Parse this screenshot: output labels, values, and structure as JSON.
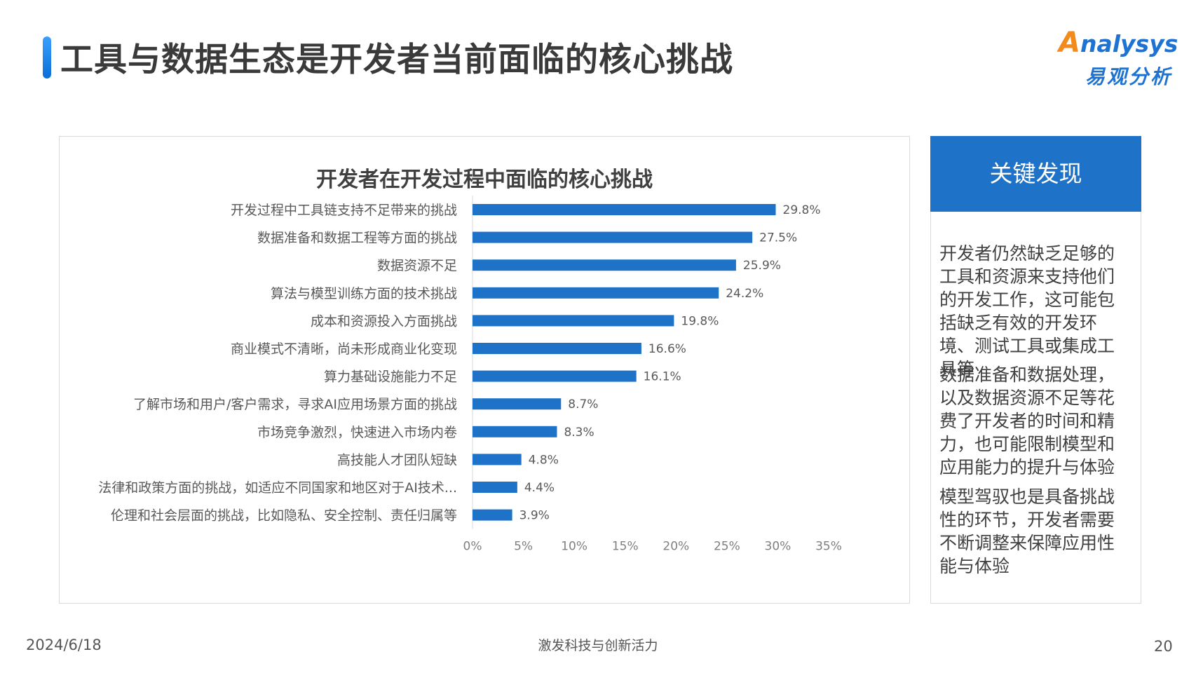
{
  "header": {
    "title": "工具与数据生态是开发者当前面临的核心挑战",
    "logo_text": "Analysys",
    "logo_cn": "易观分析"
  },
  "chart_data": {
    "type": "bar",
    "orientation": "horizontal",
    "title": "开发者在开发过程中面临的核心挑战",
    "categories": [
      "开发过程中工具链支持不足带来的挑战",
      "数据准备和数据工程等方面的挑战",
      "数据资源不足",
      "算法与模型训练方面的技术挑战",
      "成本和资源投入方面挑战",
      "商业模式不清晰，尚未形成商业化变现",
      "算力基础设施能力不足",
      "了解市场和用户/客户需求，寻求AI应用场景方面的挑战",
      "市场竞争激烈，快速进入市场内卷",
      "高技能人才团队短缺",
      "法律和政策方面的挑战，如适应不同国家和地区对于AI技术...",
      "伦理和社会层面的挑战，比如隐私、安全控制、责任归属等"
    ],
    "values": [
      29.8,
      27.5,
      25.9,
      24.2,
      19.8,
      16.6,
      16.1,
      8.7,
      8.3,
      4.8,
      4.4,
      3.9
    ],
    "value_labels": [
      "29.8%",
      "27.5%",
      "25.9%",
      "24.2%",
      "19.8%",
      "16.6%",
      "16.1%",
      "8.7%",
      "8.3%",
      "4.8%",
      "4.4%",
      "3.9%"
    ],
    "xlim": [
      0,
      35
    ],
    "xticks": [
      "0%",
      "5%",
      "10%",
      "15%",
      "20%",
      "25%",
      "30%",
      "35%"
    ],
    "bar_color": "#1e73c8",
    "grid": false
  },
  "findings": {
    "header": "关键发现",
    "paragraphs": [
      "开发者仍然缺乏足够的工具和资源来支持他们的开发工作，这可能包括缺乏有效的开发环境、测试工具或集成工具等",
      "数据准备和数据处理，以及数据资源不足等花费了开发者的时间和精力，也可能限制模型和应用能力的提升与体验",
      "模型驾驭也是具备挑战性的环节，开发者需要不断调整来保障应用性能与体验"
    ]
  },
  "footer": {
    "date": "2024/6/18",
    "slogan": "激发科技与创新活力",
    "page": "20"
  },
  "colors": {
    "accent": "#1e73c8",
    "logo_orange": "#f28a1c"
  }
}
